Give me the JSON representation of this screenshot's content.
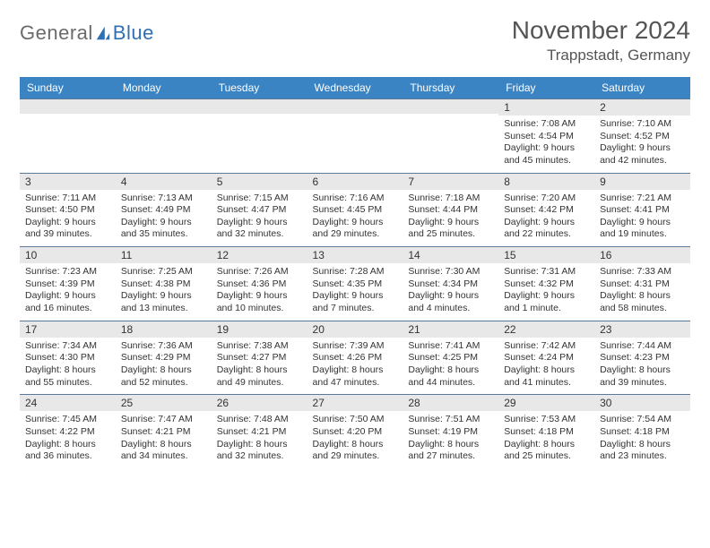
{
  "logo": {
    "general": "General",
    "blue": "Blue"
  },
  "title": "November 2024",
  "location": "Trappstadt, Germany",
  "colors": {
    "header_bg": "#3b84c4",
    "header_fg": "#ffffff",
    "dayhead_bg": "#e8e8e8",
    "rule": "#5b7a9a",
    "text": "#333333"
  },
  "weekdays": [
    "Sunday",
    "Monday",
    "Tuesday",
    "Wednesday",
    "Thursday",
    "Friday",
    "Saturday"
  ],
  "weeks": [
    [
      null,
      null,
      null,
      null,
      null,
      {
        "n": "1",
        "sr": "Sunrise: 7:08 AM",
        "ss": "Sunset: 4:54 PM",
        "d1": "Daylight: 9 hours",
        "d2": "and 45 minutes."
      },
      {
        "n": "2",
        "sr": "Sunrise: 7:10 AM",
        "ss": "Sunset: 4:52 PM",
        "d1": "Daylight: 9 hours",
        "d2": "and 42 minutes."
      }
    ],
    [
      {
        "n": "3",
        "sr": "Sunrise: 7:11 AM",
        "ss": "Sunset: 4:50 PM",
        "d1": "Daylight: 9 hours",
        "d2": "and 39 minutes."
      },
      {
        "n": "4",
        "sr": "Sunrise: 7:13 AM",
        "ss": "Sunset: 4:49 PM",
        "d1": "Daylight: 9 hours",
        "d2": "and 35 minutes."
      },
      {
        "n": "5",
        "sr": "Sunrise: 7:15 AM",
        "ss": "Sunset: 4:47 PM",
        "d1": "Daylight: 9 hours",
        "d2": "and 32 minutes."
      },
      {
        "n": "6",
        "sr": "Sunrise: 7:16 AM",
        "ss": "Sunset: 4:45 PM",
        "d1": "Daylight: 9 hours",
        "d2": "and 29 minutes."
      },
      {
        "n": "7",
        "sr": "Sunrise: 7:18 AM",
        "ss": "Sunset: 4:44 PM",
        "d1": "Daylight: 9 hours",
        "d2": "and 25 minutes."
      },
      {
        "n": "8",
        "sr": "Sunrise: 7:20 AM",
        "ss": "Sunset: 4:42 PM",
        "d1": "Daylight: 9 hours",
        "d2": "and 22 minutes."
      },
      {
        "n": "9",
        "sr": "Sunrise: 7:21 AM",
        "ss": "Sunset: 4:41 PM",
        "d1": "Daylight: 9 hours",
        "d2": "and 19 minutes."
      }
    ],
    [
      {
        "n": "10",
        "sr": "Sunrise: 7:23 AM",
        "ss": "Sunset: 4:39 PM",
        "d1": "Daylight: 9 hours",
        "d2": "and 16 minutes."
      },
      {
        "n": "11",
        "sr": "Sunrise: 7:25 AM",
        "ss": "Sunset: 4:38 PM",
        "d1": "Daylight: 9 hours",
        "d2": "and 13 minutes."
      },
      {
        "n": "12",
        "sr": "Sunrise: 7:26 AM",
        "ss": "Sunset: 4:36 PM",
        "d1": "Daylight: 9 hours",
        "d2": "and 10 minutes."
      },
      {
        "n": "13",
        "sr": "Sunrise: 7:28 AM",
        "ss": "Sunset: 4:35 PM",
        "d1": "Daylight: 9 hours",
        "d2": "and 7 minutes."
      },
      {
        "n": "14",
        "sr": "Sunrise: 7:30 AM",
        "ss": "Sunset: 4:34 PM",
        "d1": "Daylight: 9 hours",
        "d2": "and 4 minutes."
      },
      {
        "n": "15",
        "sr": "Sunrise: 7:31 AM",
        "ss": "Sunset: 4:32 PM",
        "d1": "Daylight: 9 hours",
        "d2": "and 1 minute."
      },
      {
        "n": "16",
        "sr": "Sunrise: 7:33 AM",
        "ss": "Sunset: 4:31 PM",
        "d1": "Daylight: 8 hours",
        "d2": "and 58 minutes."
      }
    ],
    [
      {
        "n": "17",
        "sr": "Sunrise: 7:34 AM",
        "ss": "Sunset: 4:30 PM",
        "d1": "Daylight: 8 hours",
        "d2": "and 55 minutes."
      },
      {
        "n": "18",
        "sr": "Sunrise: 7:36 AM",
        "ss": "Sunset: 4:29 PM",
        "d1": "Daylight: 8 hours",
        "d2": "and 52 minutes."
      },
      {
        "n": "19",
        "sr": "Sunrise: 7:38 AM",
        "ss": "Sunset: 4:27 PM",
        "d1": "Daylight: 8 hours",
        "d2": "and 49 minutes."
      },
      {
        "n": "20",
        "sr": "Sunrise: 7:39 AM",
        "ss": "Sunset: 4:26 PM",
        "d1": "Daylight: 8 hours",
        "d2": "and 47 minutes."
      },
      {
        "n": "21",
        "sr": "Sunrise: 7:41 AM",
        "ss": "Sunset: 4:25 PM",
        "d1": "Daylight: 8 hours",
        "d2": "and 44 minutes."
      },
      {
        "n": "22",
        "sr": "Sunrise: 7:42 AM",
        "ss": "Sunset: 4:24 PM",
        "d1": "Daylight: 8 hours",
        "d2": "and 41 minutes."
      },
      {
        "n": "23",
        "sr": "Sunrise: 7:44 AM",
        "ss": "Sunset: 4:23 PM",
        "d1": "Daylight: 8 hours",
        "d2": "and 39 minutes."
      }
    ],
    [
      {
        "n": "24",
        "sr": "Sunrise: 7:45 AM",
        "ss": "Sunset: 4:22 PM",
        "d1": "Daylight: 8 hours",
        "d2": "and 36 minutes."
      },
      {
        "n": "25",
        "sr": "Sunrise: 7:47 AM",
        "ss": "Sunset: 4:21 PM",
        "d1": "Daylight: 8 hours",
        "d2": "and 34 minutes."
      },
      {
        "n": "26",
        "sr": "Sunrise: 7:48 AM",
        "ss": "Sunset: 4:21 PM",
        "d1": "Daylight: 8 hours",
        "d2": "and 32 minutes."
      },
      {
        "n": "27",
        "sr": "Sunrise: 7:50 AM",
        "ss": "Sunset: 4:20 PM",
        "d1": "Daylight: 8 hours",
        "d2": "and 29 minutes."
      },
      {
        "n": "28",
        "sr": "Sunrise: 7:51 AM",
        "ss": "Sunset: 4:19 PM",
        "d1": "Daylight: 8 hours",
        "d2": "and 27 minutes."
      },
      {
        "n": "29",
        "sr": "Sunrise: 7:53 AM",
        "ss": "Sunset: 4:18 PM",
        "d1": "Daylight: 8 hours",
        "d2": "and 25 minutes."
      },
      {
        "n": "30",
        "sr": "Sunrise: 7:54 AM",
        "ss": "Sunset: 4:18 PM",
        "d1": "Daylight: 8 hours",
        "d2": "and 23 minutes."
      }
    ]
  ]
}
